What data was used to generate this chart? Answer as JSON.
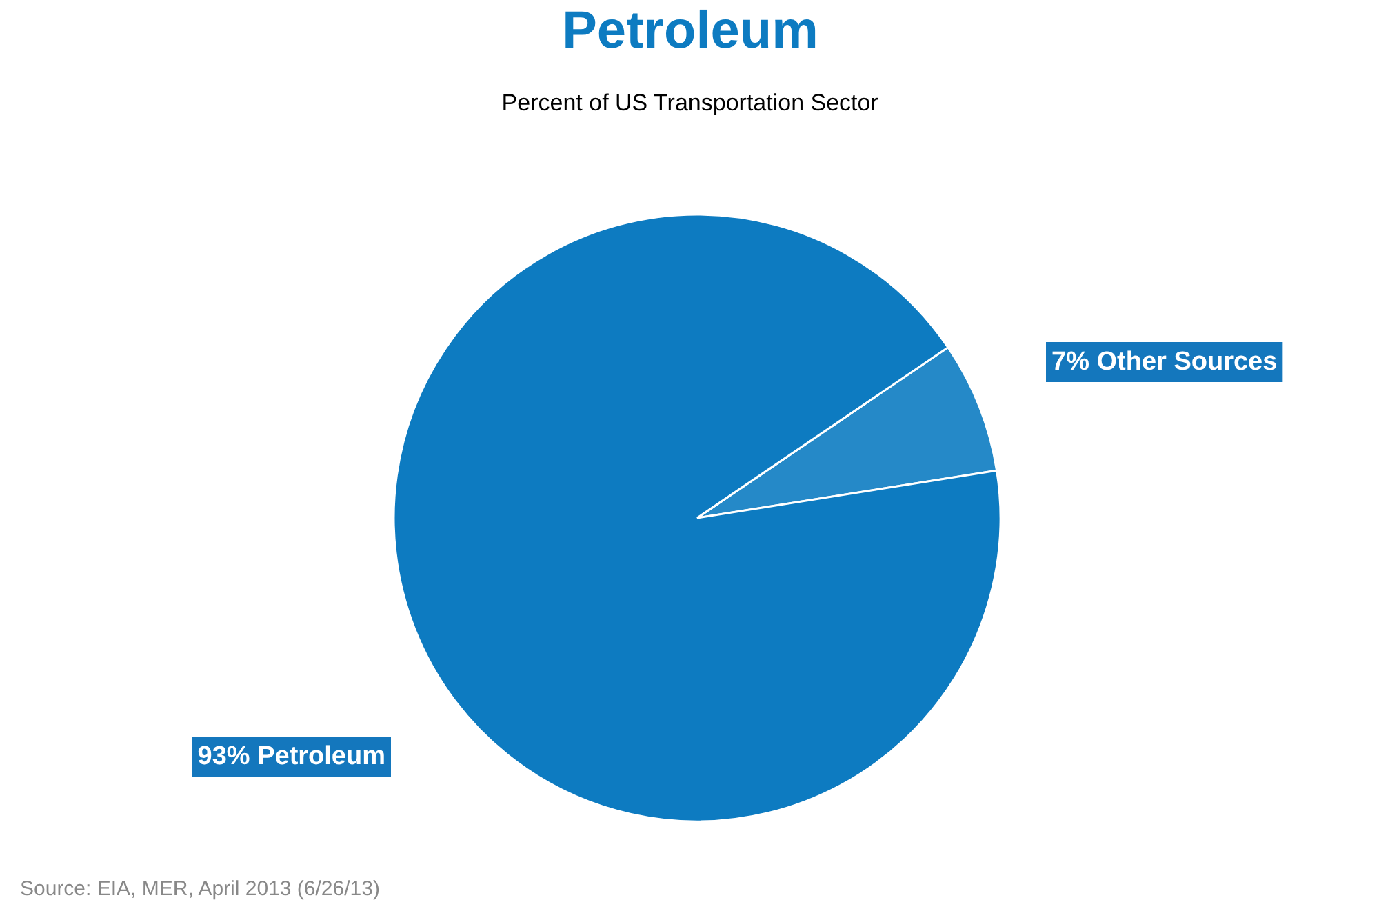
{
  "chart_data": {
    "type": "pie",
    "title": "Petroleum",
    "subtitle": "Percent of US Transportation Sector",
    "categories": [
      "Other Sources",
      "Petroleum"
    ],
    "values": [
      7,
      93
    ],
    "colors": [
      "#2589c8",
      "#0d7bc1"
    ],
    "value_labels": [
      "7%",
      "93%"
    ],
    "annotations": [
      "Source: EIA, MER, April 2013 (6/26/13)"
    ]
  }
}
